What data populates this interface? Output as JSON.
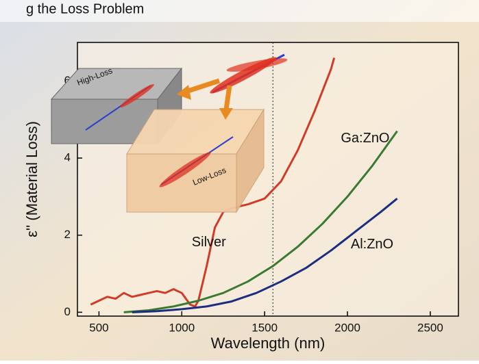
{
  "chart_data": {
    "type": "line",
    "title": "g the Loss Problem",
    "x_label": "Wavelength (nm)",
    "y_label": "ε'' (Material Loss)",
    "annotations": [
      "High-Loss",
      "Low-Loss"
    ],
    "xlim": [
      370,
      2670
    ],
    "ylim": [
      -0.1,
      7
    ],
    "xticks": [
      500,
      1000,
      1500,
      2000,
      2500
    ],
    "yticks": [
      0,
      2,
      4,
      6
    ],
    "vline": 1550,
    "series": [
      {
        "name": "Silver",
        "color": "#d23a28",
        "x": [
          450,
          500,
          550,
          600,
          650,
          700,
          750,
          800,
          850,
          900,
          950,
          1000,
          1050,
          1080,
          1100,
          1150,
          1200,
          1250,
          1300,
          1400,
          1500,
          1600,
          1700,
          1800,
          1900,
          1920
        ],
        "values": [
          0.2,
          0.3,
          0.4,
          0.35,
          0.5,
          0.4,
          0.45,
          0.5,
          0.55,
          0.5,
          0.6,
          0.5,
          0.2,
          0.15,
          0.3,
          1.2,
          2.2,
          2.6,
          2.7,
          2.8,
          2.95,
          3.4,
          4.2,
          5.2,
          6.3,
          6.6
        ]
      },
      {
        "name": "Ga:ZnO",
        "color": "#3a7a30",
        "x": [
          650,
          800,
          950,
          1100,
          1250,
          1400,
          1550,
          1700,
          1850,
          2000,
          2150,
          2300
        ],
        "values": [
          0,
          0.05,
          0.15,
          0.3,
          0.5,
          0.8,
          1.2,
          1.7,
          2.3,
          3.0,
          3.8,
          4.7
        ]
      },
      {
        "name": "Al:ZnO",
        "color": "#1a2d80",
        "x": [
          700,
          850,
          1000,
          1150,
          1300,
          1450,
          1600,
          1750,
          1900,
          2050,
          2200,
          2300
        ],
        "values": [
          0,
          0.03,
          0.08,
          0.15,
          0.28,
          0.5,
          0.8,
          1.15,
          1.6,
          2.1,
          2.6,
          2.95
        ]
      }
    ]
  }
}
